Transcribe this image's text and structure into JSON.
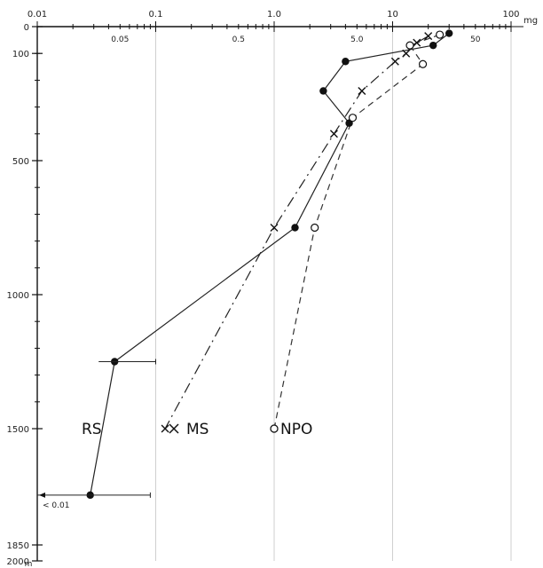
{
  "chart_data": {
    "type": "line",
    "title": "",
    "xlabel": "mg",
    "ylabel": "m",
    "x_scale": "log",
    "xlim": [
      0.01,
      100
    ],
    "y_tick_labels": [
      "0",
      "100",
      "500",
      "1000",
      "1500",
      "1850",
      "2000"
    ],
    "x_top_labels": [
      "0.01",
      "0.1",
      "1.0",
      "10",
      "100"
    ],
    "x_sub_labels": [
      "0.05",
      "0.5",
      "5.0",
      "50"
    ],
    "grid": "vertical lines at decades",
    "series": [
      {
        "name": "RS",
        "marker": "filled-circle",
        "line": "solid",
        "points": [
          {
            "x": 30,
            "y": 25
          },
          {
            "x": 22,
            "y": 70
          },
          {
            "x": 4,
            "y": 130
          },
          {
            "x": 2.6,
            "y": 240
          },
          {
            "x": 4.3,
            "y": 360
          },
          {
            "x": 1.5,
            "y": 750
          },
          {
            "x": 0.045,
            "y": 1250
          },
          {
            "x": 0.028,
            "y": 1700
          }
        ]
      },
      {
        "name": "MS",
        "marker": "cross",
        "line": "dash-dot",
        "points": [
          {
            "x": 20,
            "y": 35
          },
          {
            "x": 16,
            "y": 60
          },
          {
            "x": 13,
            "y": 100
          },
          {
            "x": 10.5,
            "y": 130
          },
          {
            "x": 5.5,
            "y": 240
          },
          {
            "x": 3.2,
            "y": 400
          },
          {
            "x": 1.0,
            "y": 750
          },
          {
            "x": 0.12,
            "y": 1500
          }
        ]
      },
      {
        "name": "NPO",
        "marker": "open-circle",
        "line": "dashed",
        "points": [
          {
            "x": 25,
            "y": 30
          },
          {
            "x": 14,
            "y": 70
          },
          {
            "x": 18,
            "y": 140
          },
          {
            "x": 4.6,
            "y": 340
          },
          {
            "x": 2.2,
            "y": 750
          },
          {
            "x": 1.0,
            "y": 1500
          }
        ]
      }
    ],
    "annotations": [
      {
        "text": "< 0.01",
        "at_depth": 1700
      }
    ]
  }
}
